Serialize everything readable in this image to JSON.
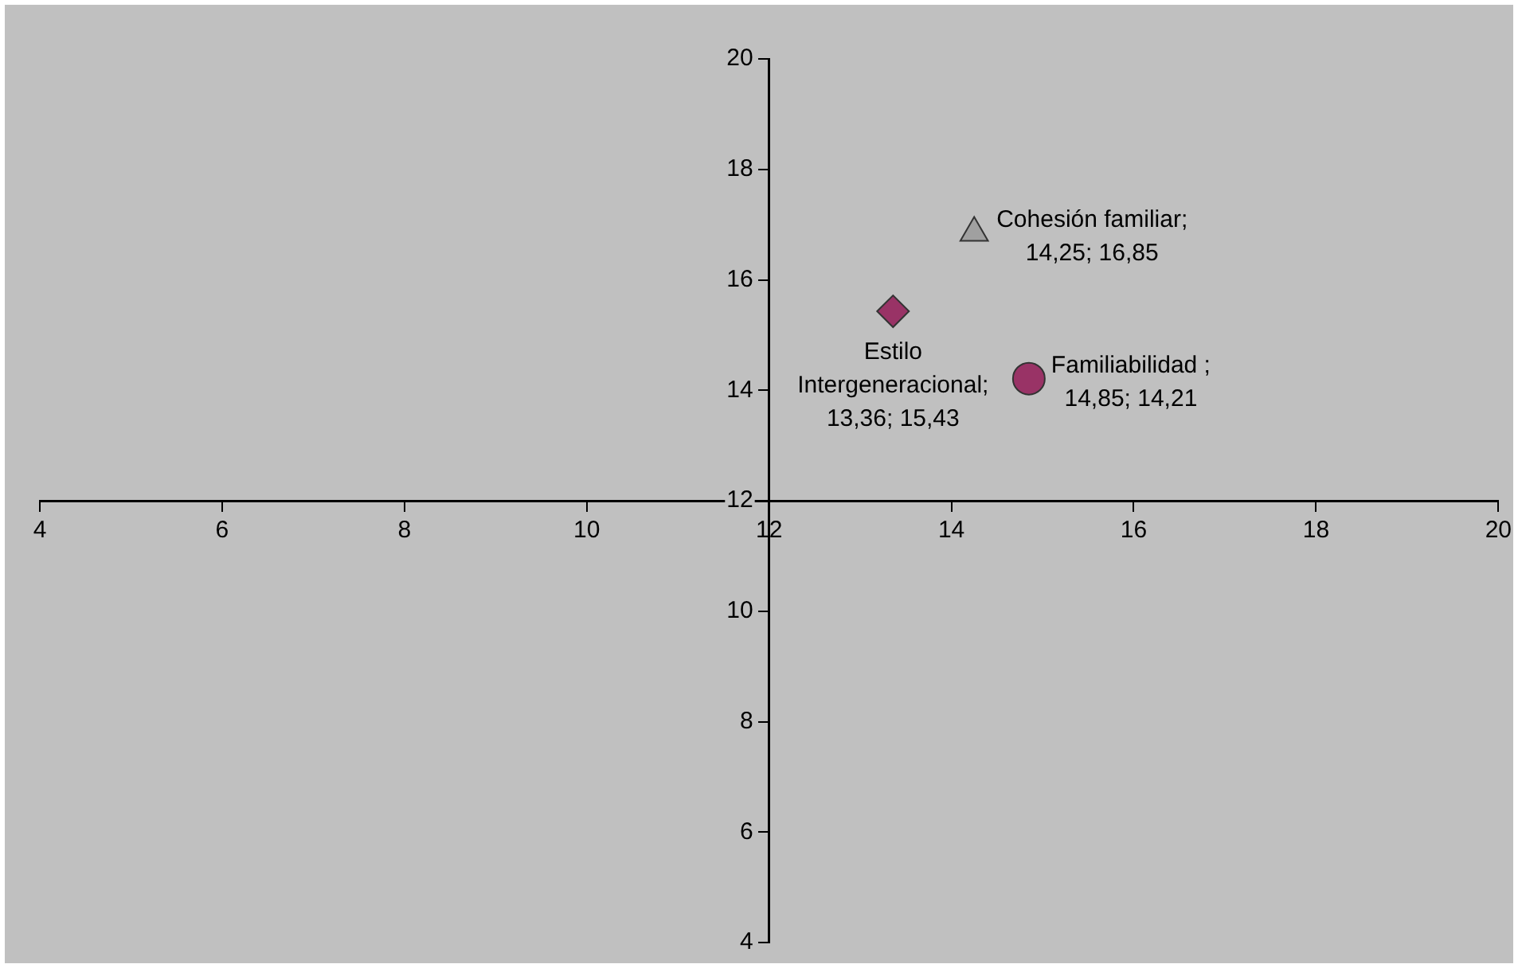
{
  "chart_data": {
    "type": "scatter",
    "xlim": [
      4,
      20
    ],
    "ylim": [
      4,
      20
    ],
    "xticks": [
      4,
      6,
      8,
      10,
      12,
      14,
      16,
      18,
      20
    ],
    "yticks": [
      4,
      6,
      8,
      10,
      12,
      14,
      16,
      18,
      20
    ],
    "grid": false,
    "legend": false,
    "series": [
      {
        "color": "#a0a0a0",
        "marker": "triangle",
        "x": [
          14.25
        ],
        "values": [
          16.85
        ],
        "value_labels": [
          "Cohesión familiar;\n14,25; 16,85"
        ]
      },
      {
        "color": "#993366",
        "marker": "circle",
        "x": [
          14.85
        ],
        "values": [
          14.21
        ],
        "value_labels": [
          "Familiabilidad ;\n14,85; 14,21"
        ]
      },
      {
        "color": "#993366",
        "marker": "diamond",
        "x": [
          13.36
        ],
        "values": [
          15.43
        ],
        "value_labels": [
          "Estilo\nIntergeneracional;\n13,36; 15,43"
        ]
      }
    ]
  }
}
